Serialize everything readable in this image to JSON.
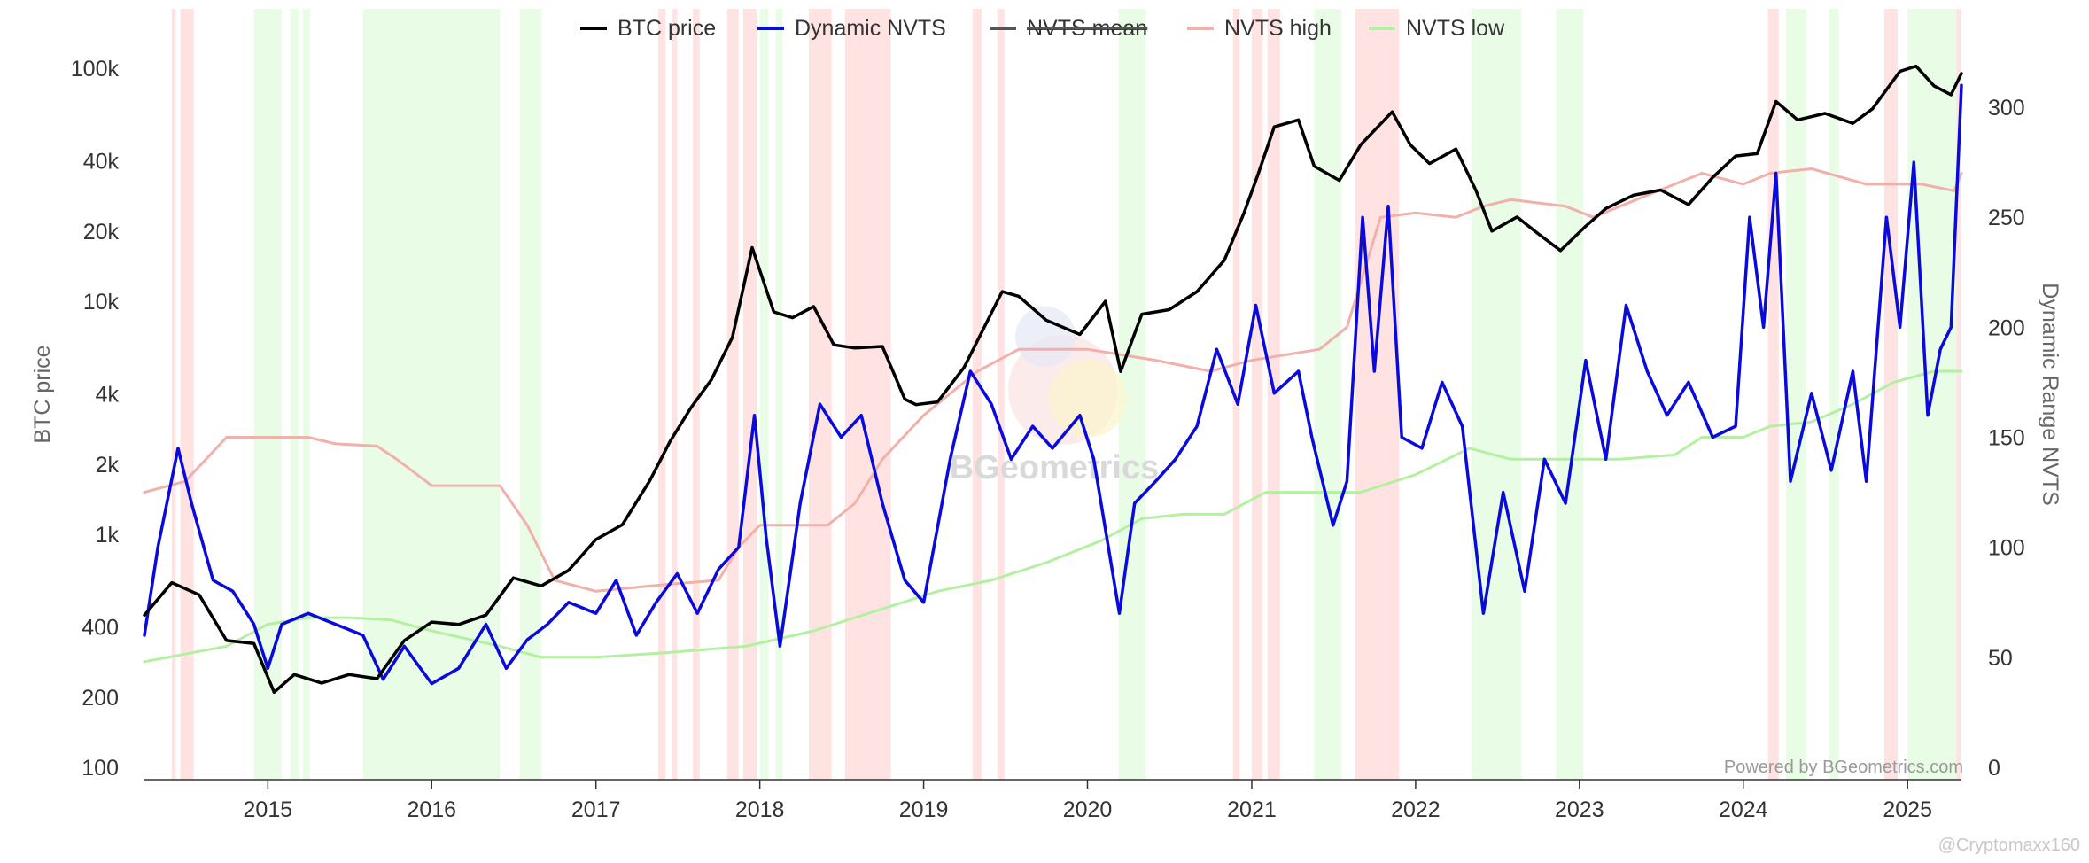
{
  "chart_data": {
    "type": "line",
    "title": "",
    "credit": "Powered by BGeometrics.com",
    "watermark": "BGeometrics",
    "footer_mark": "@Cryptomaxx160",
    "legend_position": "top",
    "grid": false,
    "x_axis": {
      "type": "date",
      "range": [
        "2014-04-01",
        "2025-05-01"
      ],
      "tick_labels": [
        "2015",
        "2016",
        "2017",
        "2018",
        "2019",
        "2020",
        "2021",
        "2022",
        "2023",
        "2024",
        "2025"
      ]
    },
    "y_left": {
      "label": "BTC price",
      "scale": "log",
      "range": [
        100,
        120000
      ],
      "ticks": [
        100,
        200,
        400,
        1000,
        2000,
        4000,
        10000,
        20000,
        40000,
        100000
      ],
      "tick_labels": [
        "100",
        "200",
        "400",
        "1k",
        "2k",
        "4k",
        "10k",
        "20k",
        "40k",
        "100k"
      ]
    },
    "y_right": {
      "label": "Dynamic Range NVTS",
      "scale": "linear",
      "range": [
        0,
        320
      ],
      "ticks": [
        0,
        50,
        100,
        150,
        200,
        250,
        300
      ],
      "tick_labels": [
        "0",
        "50",
        "100",
        "150",
        "200",
        "250",
        "300"
      ]
    },
    "series": [
      {
        "name": "BTC price",
        "axis": "left",
        "color": "#000000",
        "visible": true,
        "x": [
          "2014-04-01",
          "2014-06-01",
          "2014-08-01",
          "2014-10-01",
          "2014-12-01",
          "2015-01-15",
          "2015-03-01",
          "2015-05-01",
          "2015-07-01",
          "2015-09-01",
          "2015-11-01",
          "2016-01-01",
          "2016-03-01",
          "2016-05-01",
          "2016-07-01",
          "2016-09-01",
          "2016-11-01",
          "2017-01-01",
          "2017-03-01",
          "2017-05-01",
          "2017-06-15",
          "2017-08-01",
          "2017-09-15",
          "2017-11-01",
          "2017-12-15",
          "2018-02-01",
          "2018-03-15",
          "2018-05-01",
          "2018-06-15",
          "2018-08-01",
          "2018-10-01",
          "2018-11-20",
          "2018-12-15",
          "2019-02-01",
          "2019-04-01",
          "2019-06-25",
          "2019-08-01",
          "2019-10-01",
          "2019-12-15",
          "2020-02-10",
          "2020-03-15",
          "2020-05-01",
          "2020-07-01",
          "2020-09-01",
          "2020-11-01",
          "2020-12-15",
          "2021-01-15",
          "2021-02-20",
          "2021-04-15",
          "2021-05-20",
          "2021-07-15",
          "2021-09-01",
          "2021-11-10",
          "2021-12-20",
          "2022-02-01",
          "2022-04-01",
          "2022-05-15",
          "2022-06-20",
          "2022-08-15",
          "2022-10-01",
          "2022-11-20",
          "2023-01-15",
          "2023-03-01",
          "2023-05-01",
          "2023-07-01",
          "2023-09-01",
          "2023-10-25",
          "2023-12-15",
          "2024-02-01",
          "2024-03-14",
          "2024-05-01",
          "2024-07-01",
          "2024-09-01",
          "2024-10-15",
          "2024-12-15",
          "2025-01-20",
          "2025-03-01",
          "2025-04-08",
          "2025-05-01"
        ],
        "y": [
          450,
          620,
          550,
          350,
          340,
          210,
          250,
          230,
          250,
          240,
          350,
          420,
          410,
          450,
          650,
          600,
          700,
          950,
          1100,
          1700,
          2500,
          3500,
          4600,
          7000,
          17000,
          9000,
          8500,
          9500,
          6500,
          6300,
          6400,
          3800,
          3600,
          3700,
          5200,
          11000,
          10500,
          8300,
          7200,
          10000,
          5000,
          8800,
          9200,
          11000,
          15000,
          24000,
          35000,
          56000,
          60000,
          38000,
          33000,
          47000,
          65000,
          47000,
          39000,
          45000,
          30000,
          20000,
          23000,
          19500,
          16500,
          21000,
          25000,
          28500,
          30000,
          26000,
          34000,
          42000,
          43000,
          72000,
          60000,
          64000,
          58000,
          67000,
          97000,
          102000,
          84000,
          77000,
          95000
        ]
      },
      {
        "name": "Dynamic NVTS",
        "axis": "right",
        "color": "#0a0adc",
        "visible": true,
        "x": [
          "2014-04-01",
          "2014-05-01",
          "2014-06-15",
          "2014-07-15",
          "2014-09-01",
          "2014-10-15",
          "2014-12-01",
          "2015-01-01",
          "2015-02-01",
          "2015-04-01",
          "2015-06-01",
          "2015-08-01",
          "2015-09-15",
          "2015-11-01",
          "2016-01-01",
          "2016-03-01",
          "2016-05-01",
          "2016-06-15",
          "2016-08-01",
          "2016-09-15",
          "2016-11-01",
          "2017-01-01",
          "2017-02-15",
          "2017-04-01",
          "2017-05-15",
          "2017-07-01",
          "2017-08-15",
          "2017-10-01",
          "2017-11-15",
          "2017-12-20",
          "2018-01-15",
          "2018-02-15",
          "2018-04-01",
          "2018-05-15",
          "2018-07-01",
          "2018-08-15",
          "2018-10-01",
          "2018-11-20",
          "2019-01-01",
          "2019-03-01",
          "2019-04-15",
          "2019-06-01",
          "2019-07-15",
          "2019-09-01",
          "2019-10-15",
          "2019-12-15",
          "2020-01-15",
          "2020-03-12",
          "2020-04-15",
          "2020-06-01",
          "2020-07-15",
          "2020-09-01",
          "2020-10-15",
          "2020-12-01",
          "2021-01-10",
          "2021-02-20",
          "2021-04-15",
          "2021-05-15",
          "2021-07-01",
          "2021-08-01",
          "2021-09-05",
          "2021-10-01",
          "2021-11-01",
          "2021-12-01",
          "2022-01-15",
          "2022-03-01",
          "2022-04-15",
          "2022-06-01",
          "2022-07-15",
          "2022-09-01",
          "2022-10-15",
          "2022-12-01",
          "2023-01-15",
          "2023-03-01",
          "2023-04-15",
          "2023-06-01",
          "2023-07-15",
          "2023-09-01",
          "2023-10-25",
          "2023-12-15",
          "2024-01-15",
          "2024-02-15",
          "2024-03-14",
          "2024-04-15",
          "2024-06-01",
          "2024-07-15",
          "2024-09-01",
          "2024-10-01",
          "2024-11-15",
          "2024-12-15",
          "2025-01-15",
          "2025-02-15",
          "2025-03-15",
          "2025-04-08",
          "2025-05-01"
        ],
        "y": [
          60,
          100,
          145,
          120,
          85,
          80,
          65,
          45,
          65,
          70,
          65,
          60,
          40,
          55,
          38,
          45,
          65,
          45,
          58,
          65,
          75,
          70,
          85,
          60,
          75,
          88,
          70,
          90,
          100,
          160,
          105,
          55,
          120,
          165,
          150,
          160,
          120,
          85,
          75,
          140,
          180,
          165,
          140,
          155,
          145,
          160,
          140,
          70,
          120,
          130,
          140,
          155,
          190,
          165,
          210,
          170,
          180,
          150,
          110,
          130,
          250,
          180,
          255,
          150,
          145,
          175,
          155,
          70,
          125,
          80,
          140,
          120,
          185,
          140,
          210,
          180,
          160,
          175,
          150,
          155,
          250,
          200,
          270,
          130,
          170,
          135,
          180,
          130,
          250,
          200,
          275,
          160,
          190,
          200,
          310
        ]
      },
      {
        "name": "NVTS mean",
        "axis": "right",
        "color": "#555555",
        "visible": false,
        "x": [],
        "y": []
      },
      {
        "name": "NVTS high",
        "axis": "right",
        "color": "#f2b0ab",
        "visible": true,
        "x": [
          "2014-04-01",
          "2014-07-01",
          "2014-10-01",
          "2015-04-01",
          "2015-06-01",
          "2015-09-01",
          "2015-10-15",
          "2016-01-01",
          "2016-06-01",
          "2016-08-01",
          "2016-10-01",
          "2017-01-01",
          "2017-06-01",
          "2017-10-01",
          "2017-11-15",
          "2018-01-01",
          "2018-03-01",
          "2018-06-01",
          "2018-08-01",
          "2018-10-01",
          "2019-01-01",
          "2019-05-01",
          "2019-08-01",
          "2020-01-01",
          "2020-06-01",
          "2020-10-01",
          "2021-01-01",
          "2021-06-01",
          "2021-08-01",
          "2021-10-15",
          "2022-01-01",
          "2022-04-01",
          "2022-06-01",
          "2022-08-01",
          "2022-12-01",
          "2023-02-01",
          "2023-06-01",
          "2023-10-01",
          "2024-01-01",
          "2024-03-01",
          "2024-06-01",
          "2024-10-01",
          "2025-02-01",
          "2025-04-15",
          "2025-05-01"
        ],
        "y": [
          125,
          130,
          150,
          150,
          147,
          146,
          140,
          128,
          128,
          110,
          85,
          80,
          83,
          85,
          100,
          110,
          110,
          110,
          120,
          140,
          160,
          180,
          190,
          190,
          185,
          180,
          185,
          190,
          200,
          250,
          252,
          250,
          255,
          258,
          255,
          250,
          260,
          270,
          265,
          270,
          272,
          265,
          265,
          262,
          270
        ]
      },
      {
        "name": "NVTS low",
        "axis": "right",
        "color": "#b3f0a0",
        "visible": true,
        "x": [
          "2014-04-01",
          "2014-10-01",
          "2015-01-01",
          "2015-04-01",
          "2015-07-01",
          "2015-10-01",
          "2016-01-01",
          "2016-06-01",
          "2016-09-01",
          "2017-01-01",
          "2017-06-01",
          "2017-12-01",
          "2018-05-01",
          "2018-10-01",
          "2019-02-01",
          "2019-06-01",
          "2019-10-01",
          "2020-02-01",
          "2020-05-01",
          "2020-08-01",
          "2020-11-01",
          "2021-02-01",
          "2021-06-01",
          "2021-09-01",
          "2022-01-01",
          "2022-05-01",
          "2022-08-01",
          "2022-12-01",
          "2023-04-01",
          "2023-08-01",
          "2023-10-01",
          "2024-01-01",
          "2024-03-01",
          "2024-06-01",
          "2024-09-01",
          "2024-12-01",
          "2025-03-01",
          "2025-05-01"
        ],
        "y": [
          48,
          55,
          65,
          68,
          68,
          67,
          62,
          55,
          50,
          50,
          52,
          55,
          62,
          72,
          80,
          85,
          93,
          103,
          113,
          115,
          115,
          125,
          125,
          125,
          133,
          145,
          140,
          140,
          140,
          142,
          150,
          150,
          155,
          157,
          165,
          175,
          180,
          180
        ]
      }
    ],
    "shaded_regions": [
      {
        "color": "#ffe3e3",
        "start": "2014-06-01",
        "end": "2014-06-10"
      },
      {
        "color": "#ffe3e3",
        "start": "2014-06-20",
        "end": "2014-07-20"
      },
      {
        "color": "#e9fde6",
        "start": "2014-12-01",
        "end": "2015-02-01"
      },
      {
        "color": "#e9fde6",
        "start": "2015-02-20",
        "end": "2015-03-10"
      },
      {
        "color": "#e9fde6",
        "start": "2015-03-20",
        "end": "2015-04-05"
      },
      {
        "color": "#e9fde6",
        "start": "2015-08-01",
        "end": "2016-06-01"
      },
      {
        "color": "#e9fde6",
        "start": "2016-07-15",
        "end": "2016-09-01"
      },
      {
        "color": "#ffe3e3",
        "start": "2017-05-20",
        "end": "2017-06-05"
      },
      {
        "color": "#ffe3e3",
        "start": "2017-06-20",
        "end": "2017-07-01"
      },
      {
        "color": "#ffe3e3",
        "start": "2017-08-05",
        "end": "2017-08-20"
      },
      {
        "color": "#ffe3e3",
        "start": "2017-10-20",
        "end": "2017-11-15"
      },
      {
        "color": "#ffe3e3",
        "start": "2017-11-25",
        "end": "2017-12-25"
      },
      {
        "color": "#e9fde6",
        "start": "2018-01-01",
        "end": "2018-01-20"
      },
      {
        "color": "#e9fde6",
        "start": "2018-02-05",
        "end": "2018-02-20"
      },
      {
        "color": "#ffe3e3",
        "start": "2018-04-20",
        "end": "2018-06-10"
      },
      {
        "color": "#ffe3e3",
        "start": "2018-07-10",
        "end": "2018-10-20"
      },
      {
        "color": "#ffe3e3",
        "start": "2019-04-20",
        "end": "2019-05-10"
      },
      {
        "color": "#ffe3e3",
        "start": "2019-06-15",
        "end": "2019-06-30"
      },
      {
        "color": "#e9fde6",
        "start": "2020-03-10",
        "end": "2020-05-10"
      },
      {
        "color": "#ffe3e3",
        "start": "2020-11-20",
        "end": "2020-12-05"
      },
      {
        "color": "#ffe3e3",
        "start": "2021-01-01",
        "end": "2021-01-25"
      },
      {
        "color": "#ffe3e3",
        "start": "2021-02-05",
        "end": "2021-03-05"
      },
      {
        "color": "#e9fde6",
        "start": "2021-05-20",
        "end": "2021-07-20"
      },
      {
        "color": "#ffe3e3",
        "start": "2021-08-20",
        "end": "2021-11-25"
      },
      {
        "color": "#e9fde6",
        "start": "2022-05-05",
        "end": "2022-08-25"
      },
      {
        "color": "#e9fde6",
        "start": "2022-11-10",
        "end": "2023-01-10"
      },
      {
        "color": "#ffe3e3",
        "start": "2024-02-25",
        "end": "2024-03-20"
      },
      {
        "color": "#e9fde6",
        "start": "2024-04-05",
        "end": "2024-05-20"
      },
      {
        "color": "#e9fde6",
        "start": "2024-07-10",
        "end": "2024-08-01"
      },
      {
        "color": "#ffe3e3",
        "start": "2024-11-10",
        "end": "2024-12-10"
      },
      {
        "color": "#e9fde6",
        "start": "2025-01-01",
        "end": "2025-04-20"
      },
      {
        "color": "#ffe3e3",
        "start": "2025-04-20",
        "end": "2025-05-01"
      }
    ]
  }
}
